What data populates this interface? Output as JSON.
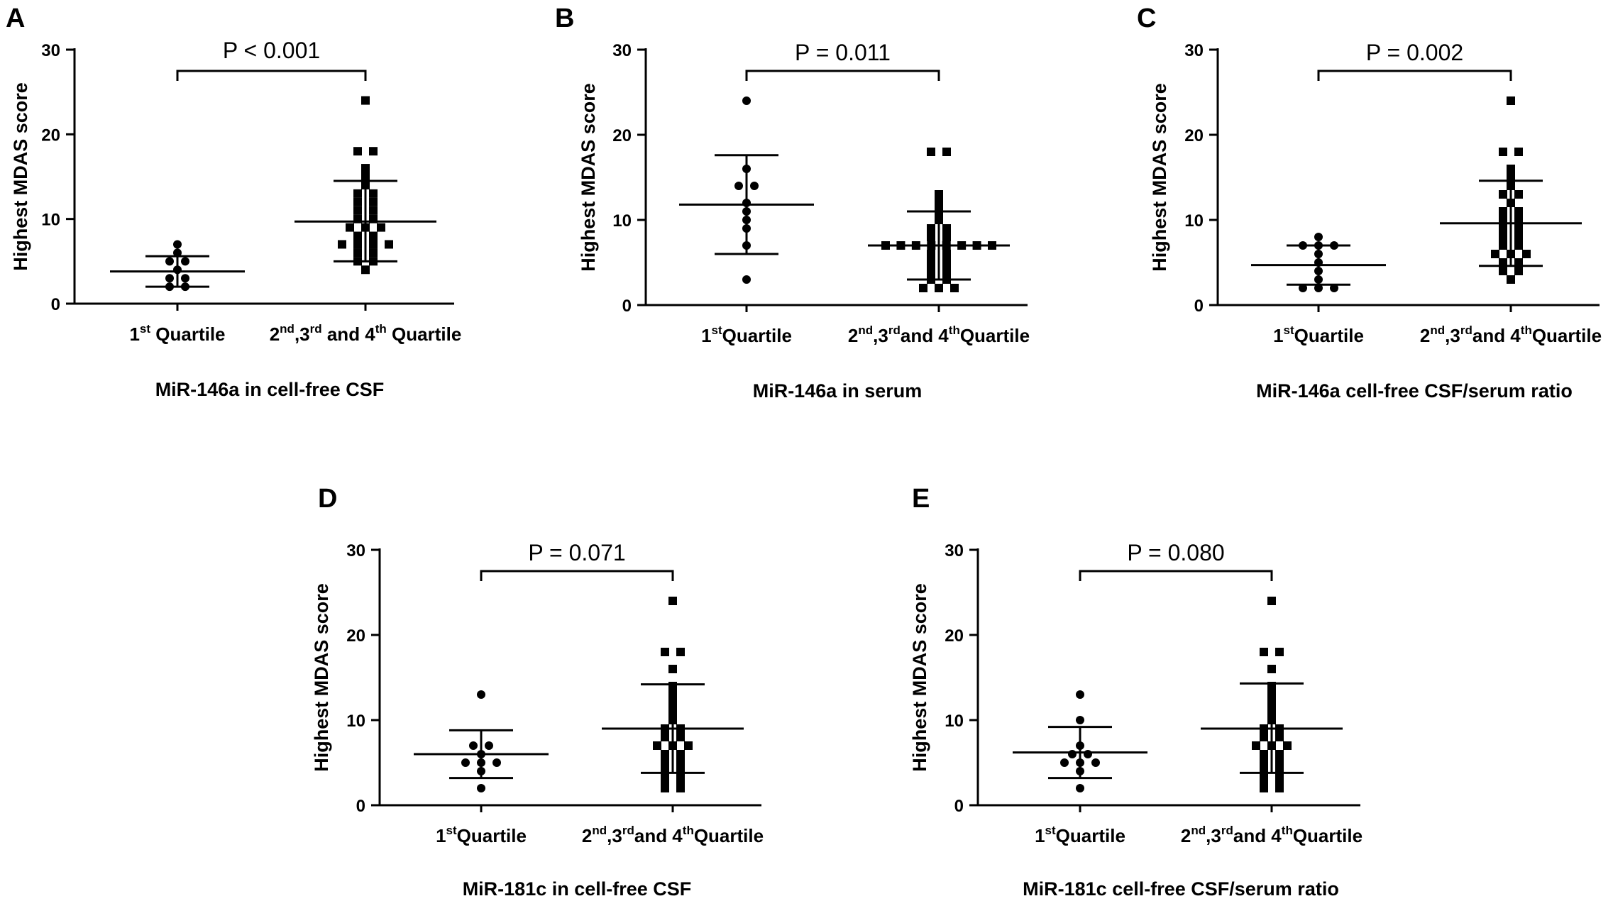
{
  "chart_data": [
    {
      "type": "scatter",
      "panel": "A",
      "title": "MiR-146a in cell-free CSF",
      "ylabel": "Highest MDAS score",
      "ylim": [
        0,
        30
      ],
      "yticks": [
        "0",
        "10",
        "20",
        "30"
      ],
      "p_value": "P < 0.001",
      "groups": [
        {
          "label": {
            "base1": "1",
            "sup1": "st",
            "rest": " Quartile"
          },
          "marker": "circle",
          "mean": 3.8,
          "sd_low": 2.0,
          "sd_high": 5.6,
          "points": [
            7,
            6,
            5,
            5,
            4,
            3,
            3,
            2,
            2
          ]
        },
        {
          "label": {
            "base1": "2",
            "sup1": "nd",
            "mid1": ",3",
            "sup2": "rd",
            "mid2": " and 4",
            "sup3": "th",
            "rest": " Quartile"
          },
          "marker": "square",
          "mean": 9.7,
          "sd_low": 5.0,
          "sd_high": 14.5,
          "points": [
            24,
            18,
            18,
            16,
            15,
            14,
            13,
            13,
            12,
            12,
            11,
            11,
            10,
            10,
            9,
            9,
            9,
            8,
            8,
            7,
            7,
            7,
            7,
            6,
            6,
            5,
            5,
            4
          ]
        }
      ]
    },
    {
      "type": "scatter",
      "panel": "B",
      "title": "MiR-146a in serum",
      "ylabel": "Highest MDAS score",
      "ylim": [
        0,
        30
      ],
      "yticks": [
        "0",
        "10",
        "20",
        "30"
      ],
      "p_value": "P = 0.011",
      "groups": [
        {
          "label": {
            "base1": "1",
            "sup1": "st",
            "rest": "Quartile"
          },
          "marker": "circle",
          "mean": 11.8,
          "sd_low": 6.0,
          "sd_high": 17.6,
          "points": [
            24,
            16,
            14,
            14,
            12,
            11,
            10,
            9,
            7,
            3
          ]
        },
        {
          "label": {
            "base1": "2",
            "sup1": "nd",
            "mid1": ",3",
            "sup2": "rd",
            "mid2": "and 4",
            "sup3": "th",
            "rest": "Quartile"
          },
          "marker": "square",
          "mean": 7.0,
          "sd_low": 3.0,
          "sd_high": 11.0,
          "points": [
            18,
            18,
            13,
            12,
            11,
            10,
            9,
            9,
            8,
            8,
            7,
            7,
            7,
            7,
            7,
            7,
            7,
            7,
            6,
            6,
            5,
            5,
            4,
            4,
            3,
            3,
            2,
            2,
            2
          ]
        }
      ]
    },
    {
      "type": "scatter",
      "panel": "C",
      "title": "MiR-146a cell-free CSF/serum ratio",
      "ylabel": "Highest MDAS score",
      "ylim": [
        0,
        30
      ],
      "yticks": [
        "0",
        "10",
        "20",
        "30"
      ],
      "p_value": "P = 0.002",
      "groups": [
        {
          "label": {
            "base1": "1",
            "sup1": "st",
            "rest": "Quartile"
          },
          "marker": "circle",
          "mean": 4.7,
          "sd_low": 2.4,
          "sd_high": 7.0,
          "points": [
            8,
            7,
            7,
            7,
            6,
            5,
            4,
            3,
            2,
            2,
            2
          ]
        },
        {
          "label": {
            "base1": "2",
            "sup1": "nd",
            "mid1": ",3",
            "sup2": "rd",
            "mid2": "and 4",
            "sup3": "th",
            "rest": "Quartile"
          },
          "marker": "square",
          "mean": 9.6,
          "sd_low": 4.6,
          "sd_high": 14.6,
          "points": [
            24,
            18,
            18,
            16,
            15,
            14,
            13,
            13,
            12,
            11,
            11,
            10,
            10,
            9,
            9,
            8,
            8,
            7,
            7,
            6,
            6,
            6,
            5,
            5,
            4,
            4,
            3
          ]
        }
      ]
    },
    {
      "type": "scatter",
      "panel": "D",
      "title": "MiR-181c in cell-free CSF",
      "ylabel": "Highest MDAS score",
      "ylim": [
        0,
        30
      ],
      "yticks": [
        "0",
        "10",
        "20",
        "30"
      ],
      "p_value": "P = 0.071",
      "groups": [
        {
          "label": {
            "base1": "1",
            "sup1": "st",
            "rest": "Quartile"
          },
          "marker": "circle",
          "mean": 6.0,
          "sd_low": 3.2,
          "sd_high": 8.8,
          "points": [
            13,
            7,
            7,
            6,
            5,
            5,
            5,
            4,
            2
          ]
        },
        {
          "label": {
            "base1": "2",
            "sup1": "nd",
            "mid1": ",3",
            "sup2": "rd",
            "mid2": "and 4",
            "sup3": "th",
            "rest": "Quartile"
          },
          "marker": "square",
          "mean": 9.0,
          "sd_low": 3.8,
          "sd_high": 14.2,
          "points": [
            24,
            18,
            18,
            16,
            14,
            13,
            12,
            11,
            10,
            9,
            9,
            8,
            8,
            7,
            7,
            7,
            6,
            6,
            5,
            5,
            4,
            4,
            3,
            3,
            2,
            2
          ]
        }
      ]
    },
    {
      "type": "scatter",
      "panel": "E",
      "title": "MiR-181c cell-free CSF/serum ratio",
      "ylabel": "Highest MDAS score",
      "ylim": [
        0,
        30
      ],
      "yticks": [
        "0",
        "10",
        "20",
        "30"
      ],
      "p_value": "P = 0.080",
      "groups": [
        {
          "label": {
            "base1": "1",
            "sup1": "st",
            "rest": "Quartile"
          },
          "marker": "circle",
          "mean": 6.2,
          "sd_low": 3.2,
          "sd_high": 9.2,
          "points": [
            13,
            10,
            7,
            6,
            6,
            5,
            5,
            5,
            4,
            2
          ]
        },
        {
          "label": {
            "base1": "2",
            "sup1": "nd",
            "mid1": ",3",
            "sup2": "rd",
            "mid2": "and 4",
            "sup3": "th",
            "rest": "Quartile"
          },
          "marker": "square",
          "mean": 9.0,
          "sd_low": 3.8,
          "sd_high": 14.3,
          "points": [
            24,
            18,
            18,
            16,
            14,
            13,
            12,
            11,
            10,
            9,
            9,
            8,
            8,
            7,
            7,
            7,
            6,
            6,
            5,
            5,
            4,
            4,
            3,
            3,
            2,
            2
          ]
        }
      ]
    }
  ]
}
